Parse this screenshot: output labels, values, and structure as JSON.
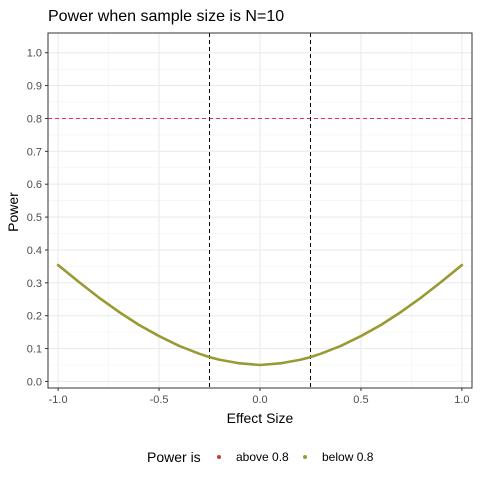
{
  "chart_data": {
    "type": "line",
    "title": "Power when sample size is N=10",
    "xlabel": "Effect Size",
    "ylabel": "Power",
    "xlim": [
      -1.05,
      1.05
    ],
    "ylim": [
      -0.02,
      1.06
    ],
    "x_ticks": [
      -1.0,
      -0.5,
      0.0,
      0.5,
      1.0
    ],
    "x_tick_labels": [
      "-1.0",
      "-0.5",
      "0.0",
      "0.5",
      "1.0"
    ],
    "y_ticks": [
      0.0,
      0.1,
      0.2,
      0.3,
      0.4,
      0.5,
      0.6,
      0.7,
      0.8,
      0.9,
      1.0
    ],
    "y_tick_labels": [
      "0.0",
      "0.1",
      "0.2",
      "0.3",
      "0.4",
      "0.5",
      "0.6",
      "0.7",
      "0.8",
      "0.9",
      "1.0"
    ],
    "grid": true,
    "legend_position": "bottom",
    "legend_title": "Power is",
    "series": [
      {
        "name": "above 0.8",
        "color": "#c1442e",
        "x": [],
        "y": []
      },
      {
        "name": "below 0.8",
        "color": "#9a9a35",
        "x": [
          -1.0,
          -0.9,
          -0.8,
          -0.7,
          -0.6,
          -0.5,
          -0.4,
          -0.3,
          -0.25,
          -0.2,
          -0.1,
          0.0,
          0.1,
          0.2,
          0.25,
          0.3,
          0.4,
          0.5,
          0.6,
          0.7,
          0.8,
          0.9,
          1.0
        ],
        "y": [
          0.354,
          0.304,
          0.256,
          0.212,
          0.172,
          0.138,
          0.108,
          0.084,
          0.074,
          0.066,
          0.055,
          0.05,
          0.055,
          0.066,
          0.074,
          0.084,
          0.108,
          0.138,
          0.172,
          0.212,
          0.256,
          0.304,
          0.354
        ]
      }
    ],
    "reference_lines": [
      {
        "orientation": "horizontal",
        "value": 0.8,
        "color": "#e8315a",
        "style": "dashed"
      },
      {
        "orientation": "vertical",
        "value": -0.25,
        "color": "#000000",
        "style": "dashed"
      },
      {
        "orientation": "vertical",
        "value": 0.25,
        "color": "#000000",
        "style": "dashed"
      }
    ]
  }
}
